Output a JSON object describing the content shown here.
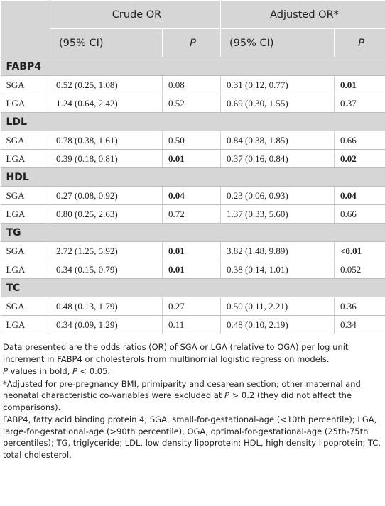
{
  "table": {
    "header": {
      "row1": [
        "Crude OR",
        "Adjusted OR*"
      ],
      "row2": [
        "(95% CI)",
        "P",
        "(95% CI)",
        "P"
      ]
    },
    "groups": [
      {
        "title": "FABP4",
        "rows": [
          {
            "label": "SGA",
            "crude_or": "0.52 (0.25, 1.08)",
            "crude_p": "0.08",
            "crude_p_bold": false,
            "adj_or": "0.31 (0.12, 0.77)",
            "adj_p": "0.01",
            "adj_p_bold": true
          },
          {
            "label": "LGA",
            "crude_or": "1.24 (0.64, 2.42)",
            "crude_p": "0.52",
            "crude_p_bold": false,
            "adj_or": "0.69 (0.30, 1.55)",
            "adj_p": "0.37",
            "adj_p_bold": false
          }
        ]
      },
      {
        "title": "LDL",
        "rows": [
          {
            "label": "SGA",
            "crude_or": "0.78 (0.38, 1.61)",
            "crude_p": "0.50",
            "crude_p_bold": false,
            "adj_or": "0.84 (0.38, 1.85)",
            "adj_p": "0.66",
            "adj_p_bold": false
          },
          {
            "label": "LGA",
            "crude_or": "0.39 (0.18, 0.81)",
            "crude_p": "0.01",
            "crude_p_bold": true,
            "adj_or": "0.37 (0.16, 0.84)",
            "adj_p": "0.02",
            "adj_p_bold": true
          }
        ]
      },
      {
        "title": "HDL",
        "rows": [
          {
            "label": "SGA",
            "crude_or": "0.27 (0.08, 0.92)",
            "crude_p": "0.04",
            "crude_p_bold": true,
            "adj_or": "0.23 (0.06, 0.93)",
            "adj_p": "0.04",
            "adj_p_bold": true
          },
          {
            "label": "LGA",
            "crude_or": "0.80 (0.25, 2.63)",
            "crude_p": "0.72",
            "crude_p_bold": false,
            "adj_or": "1.37 (0.33, 5.60)",
            "adj_p": "0.66",
            "adj_p_bold": false
          }
        ]
      },
      {
        "title": "TG",
        "rows": [
          {
            "label": "SGA",
            "crude_or": "2.72 (1.25, 5.92)",
            "crude_p": "0.01",
            "crude_p_bold": true,
            "adj_or": "3.82 (1.48, 9.89)",
            "adj_p": "<0.01",
            "adj_p_bold": true
          },
          {
            "label": "LGA",
            "crude_or": "0.34 (0.15, 0.79)",
            "crude_p": "0.01",
            "crude_p_bold": true,
            "adj_or": "0.38 (0.14, 1.01)",
            "adj_p": "0.052",
            "adj_p_bold": false
          }
        ]
      },
      {
        "title": "TC",
        "rows": [
          {
            "label": "SGA",
            "crude_or": "0.48 (0.13, 1.79)",
            "crude_p": "0.27",
            "crude_p_bold": false,
            "adj_or": "0.50 (0.11, 2.21)",
            "adj_p": "0.36",
            "adj_p_bold": false
          },
          {
            "label": "LGA",
            "crude_or": "0.34 (0.09, 1.29)",
            "crude_p": "0.11",
            "crude_p_bold": false,
            "adj_or": "0.48 (0.10, 2.19)",
            "adj_p": "0.34",
            "adj_p_bold": false
          }
        ]
      }
    ]
  },
  "notes": [
    [
      {
        "text": "Data presented are the odds ratios (OR) of SGA or LGA (relative to OGA) per log unit increment in FABP4 or cholesterols from multinomial logistic regression models.",
        "italic": false
      }
    ],
    [
      {
        "text": "P",
        "italic": true
      },
      {
        "text": " values in bold, ",
        "italic": false
      },
      {
        "text": "P",
        "italic": true
      },
      {
        "text": " < 0.05.",
        "italic": false
      }
    ],
    [
      {
        "text": "*Adjusted for pre-pregnancy BMI, primiparity and cesarean section; other maternal and neonatal characteristic co-variables were excluded at ",
        "italic": false
      },
      {
        "text": "P",
        "italic": true
      },
      {
        "text": " > 0.2 (they did not affect the comparisons).",
        "italic": false
      }
    ],
    [
      {
        "text": "FABP4, fatty acid binding protein 4; SGA, small-for-gestational-age (<10th percentile); LGA, large-for-gestational-age (>90th percentile), OGA, optimal-for-gestational-age (25th-75th percentiles); TG, triglyceride; LDL, low density lipoprotein; HDL, high density lipoprotein; TC, total cholesterol.",
        "italic": false
      }
    ]
  ]
}
